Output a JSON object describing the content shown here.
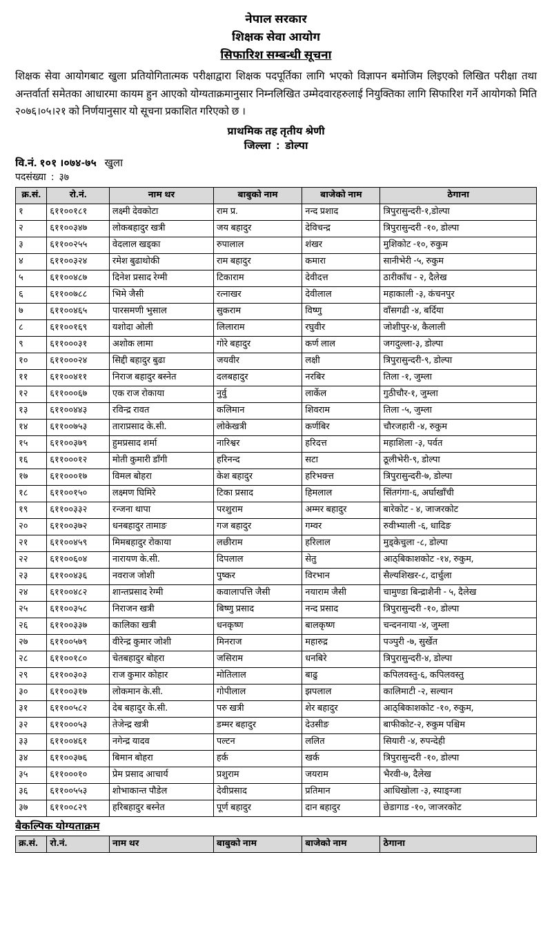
{
  "header": {
    "line1": "नेपाल सरकार",
    "line2": "शिक्षक सेवा आयोग",
    "notice_title": "सिफारिश सम्बन्धी सूचना"
  },
  "body_text": "शिक्षक सेवा आयोगबाट खुला प्रतियोगितात्मक परीक्षाद्वारा शिक्षक पदपूर्तिका लागि भएको विज्ञापन बमोजिम लिइएको लिखित परीक्षा तथा अन्तर्वार्ता समेतका आधारमा कायम हुन आएको योग्यताक्रमानुसार निम्नलिखित उम्मेदवारहरुलाई नियुक्तिका लागि सिफारिश गर्ने आयोगको मिति २०७६।०५।२१   को निर्णयानुसार यो सूचना प्रकाशित गरिएको छ ।",
  "level": "प्राथमिक तह  तृतीय श्रेणी",
  "district_label": "जिल्ला",
  "district_value": "डोल्पा",
  "adv": {
    "label": "वि.नं.",
    "value": "१०१ ।०७४-७५",
    "type": "खुला"
  },
  "post_count_label": "पदसंख्या",
  "post_count_value": "३७",
  "columns": {
    "sn": "क्र.सं.",
    "roll": "रो.नं.",
    "name": "नाम थर",
    "father": "बाबुको नाम",
    "gfather": "बाजेको नाम",
    "address": "ठेगाना"
  },
  "rows": [
    {
      "sn": "१",
      "roll": "६११००१८१",
      "name": "लक्ष्मी देवकोटा",
      "father": "राम प्र.",
      "gfather": "नन्द प्रशाद",
      "address": "त्रिपुरासुन्दरी-१,डोल्पा"
    },
    {
      "sn": "२",
      "roll": "६११००३४७",
      "name": "लोकबहादुर खत्री",
      "father": "जय बहादुर",
      "gfather": "देविचन्द्र",
      "address": "त्रिपुरासुन्दरी -१०, डोल्पा"
    },
    {
      "sn": "३",
      "roll": "६११००२५५",
      "name": "वेदलाल खड्का",
      "father": "रुपालाल",
      "gfather": "शंखर",
      "address": "मुशिकोट -१०, रुकुम"
    },
    {
      "sn": "४",
      "roll": "६११००३२४",
      "name": "रमेश बुढाथोकी",
      "father": "राम बहादुर",
      "gfather": "कमारा",
      "address": "सानीभेरी -५, रुकुम"
    },
    {
      "sn": "५",
      "roll": "६११००४८७",
      "name": "दिनेश प्रसाद  रेग्मी",
      "father": "टिकाराम",
      "gfather": "देवीदत्त",
      "address": "ठारीकाँध  - २, दैलेख"
    },
    {
      "sn": "६",
      "roll": "६११००७८८",
      "name": "भिमे  जैसी",
      "father": "रत्नाखर",
      "gfather": "देवीलाल",
      "address": "महाकाली -३, कंचनपुर"
    },
    {
      "sn": "७",
      "roll": "६११००४६५",
      "name": "पारसमणी भुसाल",
      "father": "सुकराम",
      "gfather": "विष्णु",
      "address": "वाँसगढी -४, बर्दिया"
    },
    {
      "sn": "८",
      "roll": "६११००१६९",
      "name": "यशोदा ओली",
      "father": "लिलाराम",
      "gfather": "रघुवीर",
      "address": "जोशीपुर-४, कैलाली"
    },
    {
      "sn": "९",
      "roll": "६११०००३१",
      "name": "अशोक लामा",
      "father": "गोरे बहादुर",
      "gfather": "कर्ण लाल",
      "address": "जगदुल्ला-३, डोल्पा"
    },
    {
      "sn": "१०",
      "roll": "६११०००२४",
      "name": "सिद्दी बहादुर  बुढा",
      "father": "जयवीर",
      "gfather": "लक्षी",
      "address": "त्रिपुरासुन्दरी-९, डोल्पा"
    },
    {
      "sn": "११",
      "roll": "६११००४११",
      "name": "निराज बहादुर  बस्नेत",
      "father": "दलबहादुर",
      "gfather": "नरबिर",
      "address": "तिला  -१, जुम्ला"
    },
    {
      "sn": "१२",
      "roll": "६११०००६७",
      "name": "एक  राज रोकाया",
      "father": "नुर्वु",
      "gfather": "लार्केल",
      "address": "गुठीचौर-१, जुम्ला"
    },
    {
      "sn": "१३",
      "roll": "६११००४४३",
      "name": "रविन्द्र रावत",
      "father": "कलिमान",
      "gfather": "शिवराम",
      "address": "तिला  -५, जुम्ला"
    },
    {
      "sn": "१४",
      "roll": "६११००७५३",
      "name": "ताराप्रसाद के.सी.",
      "father": "लोकेखत्री",
      "gfather": "कर्णबिर",
      "address": "चौरजहारी -४, रुकुम"
    },
    {
      "sn": "१५",
      "roll": "६११००३७९",
      "name": "हुमप्रसाद शर्मा",
      "father": "नारिश्वर",
      "gfather": "हरिदत्त",
      "address": "महाशिला -३, पर्वत"
    },
    {
      "sn": "१६",
      "roll": "६११०००१२",
      "name": "मोती कुमारी  डाँगी",
      "father": "हरिनन्द",
      "gfather": "सटा",
      "address": "ठूलीभेरी-९, डोल्पा"
    },
    {
      "sn": "१७",
      "roll": "६११०००१७",
      "name": "विमल  बोहरा",
      "father": "केश बहादुर",
      "gfather": "हरिभक्त्त",
      "address": "त्रिपुरासुन्दरी-७, डोल्पा"
    },
    {
      "sn": "१८",
      "roll": "६११००१५०",
      "name": "लक्ष्मण घिमिरे",
      "father": "टिका प्रसाद",
      "gfather": "हिमलाल",
      "address": "सिंतगंगा-६, अर्घाखाँची"
    },
    {
      "sn": "१९",
      "roll": "६११००३३२",
      "name": "रन्जना थापा",
      "father": "परशुराम",
      "gfather": "अम्मर बहादुर",
      "address": "बारेकोट  - ४, जाजरकोट"
    },
    {
      "sn": "२०",
      "roll": "६११००३७२",
      "name": "धनबहादुर तामाङ",
      "father": "गज बहादुर",
      "gfather": "गम्वर",
      "address": "रुवीभ्याली -६, धादिङ"
    },
    {
      "sn": "२१",
      "roll": "६११००४५९",
      "name": "मिमबहादुर रोकाया",
      "father": "लछीराम",
      "gfather": "हरिलाल",
      "address": "मुड्केचुला -८, डोल्पा"
    },
    {
      "sn": "२२",
      "roll": "६११००६०४",
      "name": "नारायण के.सी.",
      "father": "दिपलाल",
      "gfather": "सेतु",
      "address": "आठ्बिकाशकोट -१४, रुकुम,"
    },
    {
      "sn": "२३",
      "roll": "६११००४३६",
      "name": "नवराज जोशी",
      "father": "पुष्कर",
      "gfather": "विरभान",
      "address": "सैल्यशिखर-८, दार्चुला"
    },
    {
      "sn": "२४",
      "roll": "६११००४८२",
      "name": "शान्तप्रसाद रेग्मी",
      "father": "कवालापत्ति जैसी",
      "gfather": "नयाराम  जैसी",
      "address": "चामुण्डा बिन्द्राशैनी   - ५, दैलेख"
    },
    {
      "sn": "२५",
      "roll": "६११००३५८",
      "name": "निराजन खत्री",
      "father": "बिष्णु प्रसाद",
      "gfather": "नन्द प्रसाद",
      "address": "त्रिपुरासुन्दरी -१०, डोल्पा"
    },
    {
      "sn": "२६",
      "roll": "६११००३३७",
      "name": "कालिका खत्री",
      "father": "धनकृष्ण",
      "gfather": "बालकृष्ण",
      "address": "चन्दननाया -४, जुम्ला"
    },
    {
      "sn": "२७",
      "roll": "६११००५७९",
      "name": "वीरेन्द्र कुमार जोशी",
      "father": "मिनराज",
      "gfather": "महारुद्र",
      "address": "पञ्पुरी  -७, सुर्खेत"
    },
    {
      "sn": "२८",
      "roll": "६११००१८०",
      "name": "चेतबहादुर बोहरा",
      "father": "जसिराम",
      "gfather": "धनबिरे",
      "address": "त्रिपुरासुन्दरी-४, डोल्पा"
    },
    {
      "sn": "२९",
      "roll": "६११००३०३",
      "name": "राज  कुमार कोहार",
      "father": "मोतिलाल",
      "gfather": "बाढु",
      "address": "कपिलवस्तु-६, कपिलवस्तु"
    },
    {
      "sn": "३०",
      "roll": "६११००३१७",
      "name": "लोकमान के.सी.",
      "father": "गोपीलाल",
      "gfather": "झपलाल",
      "address": "कालिमाटी -२, सल्यान"
    },
    {
      "sn": "३१",
      "roll": "६११००५८२",
      "name": "देब बहादुर के.सी.",
      "father": "परु खत्री",
      "gfather": "शेर बहादुर",
      "address": "आठ्बिकाशकोट -१०, रुकुम,"
    },
    {
      "sn": "३२",
      "roll": "६११०००५३",
      "name": "तेजेन्द्र खत्री",
      "father": "डम्मर बहादुर",
      "gfather": "देउसीङ",
      "address": "बाफीकोट-२, रुकुम  पश्चिम"
    },
    {
      "sn": "३३",
      "roll": "६११००४६१",
      "name": "नगेन्द्र यादव",
      "father": "पल्टन",
      "gfather": "ललित",
      "address": "सियारी  -४, रुपन्देही"
    },
    {
      "sn": "३४",
      "roll": "६११००३७६",
      "name": "बिमान बोहरा",
      "father": "हर्क",
      "gfather": "खर्क",
      "address": "त्रिपुरासुन्दरी -१०, डोल्पा"
    },
    {
      "sn": "३५",
      "roll": "६११०००१०",
      "name": "प्रेम प्रसाद  आचार्य",
      "father": "प्रशुराम",
      "gfather": "जयराम",
      "address": "भैरवी-७, दैलेख"
    },
    {
      "sn": "३६",
      "roll": "६११००५५३",
      "name": "शोभाकान्त पौडेल",
      "father": "देवीप्रसाद",
      "gfather": "प्रतिमान",
      "address": "आधिखोला -३, स्याङ्ग्जा"
    },
    {
      "sn": "३७",
      "roll": "६११००८२९",
      "name": "हरिबहादुर बस्नेत",
      "father": "पूर्ण बहादुर",
      "gfather": "दान बहादुर",
      "address": "छेडागाड -१०, जाजरकोट"
    }
  ],
  "alt_title": "बैकल्पिक योग्यताक्रम",
  "style": {
    "header_bg": "#d9d9d9",
    "border_color": "#000000",
    "bg": "#ffffff",
    "body_font_size": 14,
    "title_font_size": 17
  }
}
